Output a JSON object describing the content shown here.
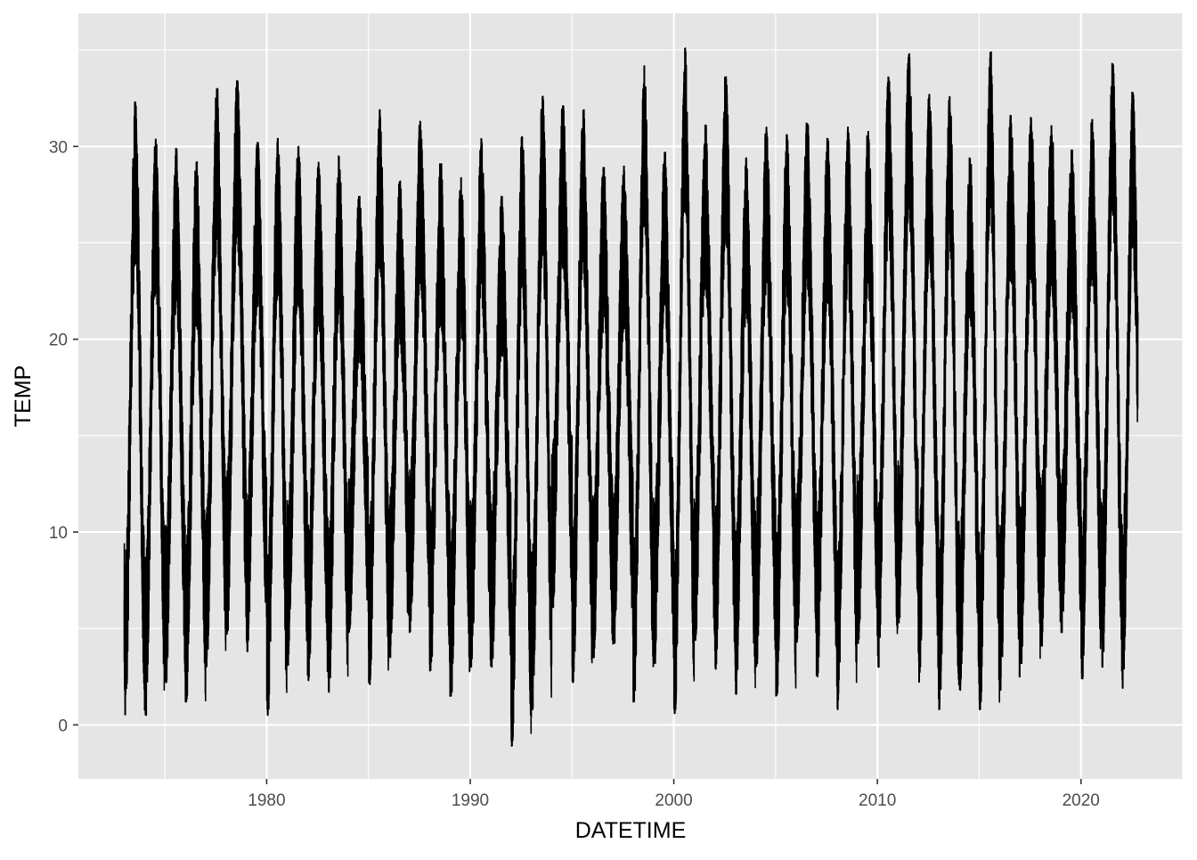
{
  "chart_data": {
    "type": "line",
    "title": "",
    "xlabel": "DATETIME",
    "ylabel": "TEMP",
    "x_range": [
      1970.75,
      2025.0
    ],
    "y_range": [
      -2.8,
      36.9
    ],
    "x_ticks": [
      1980,
      1990,
      2000,
      2010,
      2020
    ],
    "x_tick_labels": [
      "1980",
      "1990",
      "2000",
      "2010",
      "2020"
    ],
    "y_ticks": [
      0,
      10,
      20,
      30
    ],
    "y_tick_labels": [
      "0",
      "10",
      "20",
      "30"
    ],
    "x_minor_ticks": [
      1975,
      1985,
      1995,
      2005,
      2015,
      2025
    ],
    "y_minor_ticks": [
      5,
      15,
      25,
      35
    ],
    "grid": true,
    "legend": "none",
    "background_color": "#e5e5e5",
    "grid_color": "#ffffff",
    "line_color": "#000000",
    "series": [
      {
        "x_start": 1973.0,
        "x_end": 2022.8,
        "annual_extremes": [
          {
            "year": 1973,
            "min": 0.5,
            "max": 32.3
          },
          {
            "year": 1974,
            "min": 0.5,
            "max": 30.4
          },
          {
            "year": 1975,
            "min": 2.2,
            "max": 29.9
          },
          {
            "year": 1976,
            "min": 1.2,
            "max": 29.2
          },
          {
            "year": 1977,
            "min": 3.0,
            "max": 33.0
          },
          {
            "year": 1978,
            "min": 4.7,
            "max": 33.4
          },
          {
            "year": 1979,
            "min": 3.8,
            "max": 30.2
          },
          {
            "year": 1980,
            "min": 0.5,
            "max": 30.4
          },
          {
            "year": 1981,
            "min": 3.1,
            "max": 30.0
          },
          {
            "year": 1982,
            "min": 2.3,
            "max": 29.2
          },
          {
            "year": 1983,
            "min": 1.7,
            "max": 29.5
          },
          {
            "year": 1984,
            "min": 4.8,
            "max": 27.4
          },
          {
            "year": 1985,
            "min": 2.1,
            "max": 31.9
          },
          {
            "year": 1986,
            "min": 3.5,
            "max": 28.2
          },
          {
            "year": 1987,
            "min": 4.8,
            "max": 31.3
          },
          {
            "year": 1988,
            "min": 2.8,
            "max": 29.1
          },
          {
            "year": 1989,
            "min": 1.5,
            "max": 28.4
          },
          {
            "year": 1990,
            "min": 3.0,
            "max": 30.4
          },
          {
            "year": 1991,
            "min": 3.0,
            "max": 27.4
          },
          {
            "year": 1992,
            "min": -1.1,
            "max": 30.5
          },
          {
            "year": 1993,
            "min": 0.8,
            "max": 32.6
          },
          {
            "year": 1994,
            "min": 6.1,
            "max": 32.1
          },
          {
            "year": 1995,
            "min": 2.2,
            "max": 31.9
          },
          {
            "year": 1996,
            "min": 3.5,
            "max": 28.9
          },
          {
            "year": 1997,
            "min": 4.2,
            "max": 29.0
          },
          {
            "year": 1998,
            "min": 1.2,
            "max": 34.2
          },
          {
            "year": 1999,
            "min": 3.2,
            "max": 29.7
          },
          {
            "year": 2000,
            "min": 0.6,
            "max": 35.1
          },
          {
            "year": 2001,
            "min": 4.4,
            "max": 31.1
          },
          {
            "year": 2002,
            "min": 2.9,
            "max": 33.6
          },
          {
            "year": 2003,
            "min": 1.6,
            "max": 29.4
          },
          {
            "year": 2004,
            "min": 3.0,
            "max": 31.0
          },
          {
            "year": 2005,
            "min": 1.5,
            "max": 30.6
          },
          {
            "year": 2006,
            "min": 4.3,
            "max": 31.2
          },
          {
            "year": 2007,
            "min": 2.5,
            "max": 30.4
          },
          {
            "year": 2008,
            "min": 0.8,
            "max": 31.0
          },
          {
            "year": 2009,
            "min": 4.2,
            "max": 30.8
          },
          {
            "year": 2010,
            "min": 3.0,
            "max": 33.6
          },
          {
            "year": 2011,
            "min": 5.3,
            "max": 34.8
          },
          {
            "year": 2012,
            "min": 2.2,
            "max": 32.7
          },
          {
            "year": 2013,
            "min": 0.8,
            "max": 32.6
          },
          {
            "year": 2014,
            "min": 1.8,
            "max": 29.4
          },
          {
            "year": 2015,
            "min": 0.8,
            "max": 34.9
          },
          {
            "year": 2016,
            "min": 1.8,
            "max": 31.6
          },
          {
            "year": 2017,
            "min": 3.2,
            "max": 31.5
          },
          {
            "year": 2018,
            "min": 4.1,
            "max": 31.1
          },
          {
            "year": 2019,
            "min": 4.8,
            "max": 29.8
          },
          {
            "year": 2020,
            "min": 2.4,
            "max": 31.4
          },
          {
            "year": 2021,
            "min": 3.0,
            "max": 34.3
          },
          {
            "year": 2022,
            "min": 1.9,
            "max": 32.8
          }
        ]
      }
    ]
  }
}
